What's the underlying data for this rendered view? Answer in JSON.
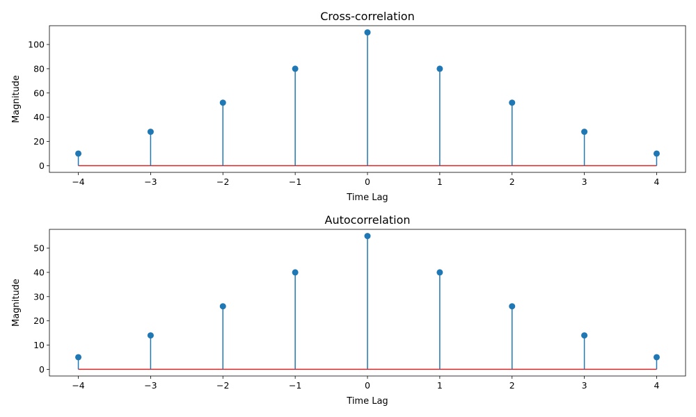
{
  "colors": {
    "stem": "#1f77b4",
    "marker": "#1f77b4",
    "baseline": "#d62728",
    "axis": "#000000"
  },
  "chart_data": [
    {
      "type": "stem",
      "title": "Cross-correlation",
      "xlabel": "Time Lag",
      "ylabel": "Magnitude",
      "x": [
        -4,
        -3,
        -2,
        -1,
        0,
        1,
        2,
        3,
        4
      ],
      "values": [
        10,
        28,
        52,
        80,
        110,
        80,
        52,
        28,
        10
      ],
      "xticks": [
        -4,
        -3,
        -2,
        -1,
        0,
        1,
        2,
        3,
        4
      ],
      "xtick_labels": [
        "−4",
        "−3",
        "−2",
        "−1",
        "0",
        "1",
        "2",
        "3",
        "4"
      ],
      "yticks": [
        0,
        20,
        40,
        60,
        80,
        100
      ],
      "ytick_labels": [
        "0",
        "20",
        "40",
        "60",
        "80",
        "100"
      ],
      "xlim": [
        -4.4,
        4.4
      ],
      "ylim": [
        -5.5,
        115.5
      ],
      "baseline": 0,
      "grid": false
    },
    {
      "type": "stem",
      "title": "Autocorrelation",
      "xlabel": "Time Lag",
      "ylabel": "Magnitude",
      "x": [
        -4,
        -3,
        -2,
        -1,
        0,
        1,
        2,
        3,
        4
      ],
      "values": [
        5,
        14,
        26,
        40,
        55,
        40,
        26,
        14,
        5
      ],
      "xticks": [
        -4,
        -3,
        -2,
        -1,
        0,
        1,
        2,
        3,
        4
      ],
      "xtick_labels": [
        "−4",
        "−3",
        "−2",
        "−1",
        "0",
        "1",
        "2",
        "3",
        "4"
      ],
      "yticks": [
        0,
        10,
        20,
        30,
        40,
        50
      ],
      "ytick_labels": [
        "0",
        "10",
        "20",
        "30",
        "40",
        "50"
      ],
      "xlim": [
        -4.4,
        4.4
      ],
      "ylim": [
        -2.75,
        57.75
      ],
      "baseline": 0,
      "grid": false
    }
  ]
}
